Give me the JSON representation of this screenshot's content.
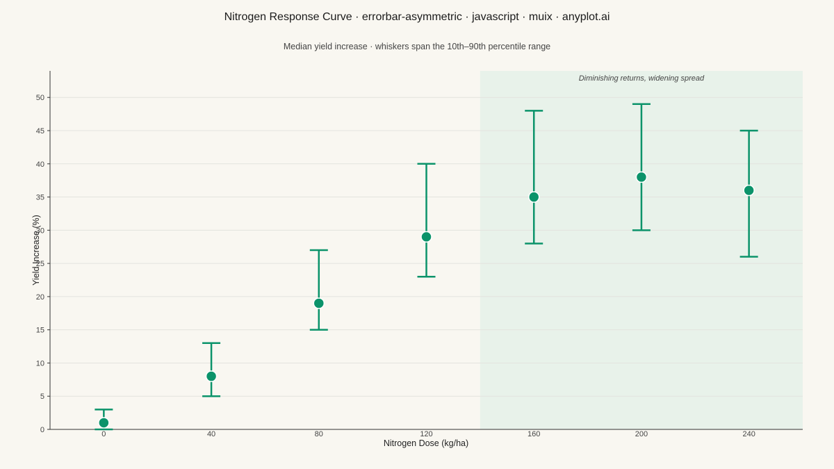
{
  "chart_data": {
    "type": "scatter",
    "title": "Nitrogen Response Curve · errorbar-asymmetric · javascript · muix · anyplot.ai",
    "subtitle": "Median yield increase · whiskers span the 10th–90th percentile range",
    "xlabel": "Nitrogen Dose (kg/ha)",
    "ylabel": "Yield Increase (%)",
    "x_ticks": [
      0,
      40,
      80,
      120,
      160,
      200,
      240
    ],
    "y_ticks": [
      0,
      5,
      10,
      15,
      20,
      25,
      30,
      35,
      40,
      45,
      50
    ],
    "xlim": [
      -20,
      260
    ],
    "ylim": [
      0,
      54
    ],
    "grid": true,
    "series": [
      {
        "x": [
          0,
          40,
          80,
          120,
          160,
          200,
          240
        ],
        "median": [
          1,
          8,
          19,
          29,
          35,
          38,
          36
        ],
        "p10": [
          0,
          5,
          15,
          23,
          28,
          30,
          26
        ],
        "p90": [
          3,
          13,
          27,
          40,
          48,
          49,
          45
        ]
      }
    ],
    "annotation": {
      "text": "Diminishing returns, widening spread",
      "x_range": [
        140,
        260
      ]
    },
    "colors": {
      "marker": "#0b936a",
      "shade": "#e8f2ea",
      "background": "#f9f7f1"
    }
  }
}
